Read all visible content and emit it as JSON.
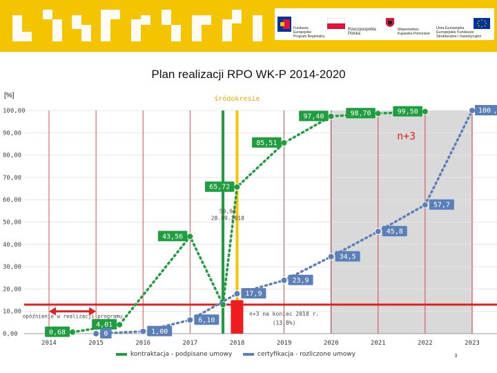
{
  "header": {
    "logos": [
      {
        "name": "Fundusze Europejskie",
        "lines": [
          "Fundusze",
          "Europejskie",
          "Program Regionalny"
        ]
      },
      {
        "name": "Rzeczpospolita Polska",
        "lines": [
          "Rzeczpospolita",
          "Polska"
        ]
      },
      {
        "name": "Województwo Kujawsko-Pomorskie",
        "lines": [
          "Województwo",
          "Kujawsko-Pomorskie"
        ]
      },
      {
        "name": "Unia Europejska",
        "lines": [
          "Unia Europejska",
          "Europejskie Fundusze",
          "Strukturalne i Inwestycyjne"
        ]
      }
    ],
    "colors": {
      "banner": "#f4c400",
      "flag_red": "#dc143c",
      "eu_blue": "#003399"
    }
  },
  "page_number": "3",
  "chart_data": {
    "type": "line",
    "title": "Plan realizacji RPO WK-P 2014-2020",
    "ylabel": "[%]",
    "xlabel": "",
    "categories": [
      "2014",
      "2015",
      "2016",
      "2017",
      "2018",
      "2019",
      "2020",
      "2021",
      "2022",
      "2023"
    ],
    "ylim": [
      0,
      100
    ],
    "y_ticks": [
      "0,00",
      "10,00",
      "20,00",
      "30,00",
      "40,00",
      "50,00",
      "60,00",
      "70,00",
      "80,00",
      "90,00",
      "100,00"
    ],
    "grid": true,
    "legend_position": "bottom",
    "series": [
      {
        "name": "kontraktacja - podpisane umowy",
        "color": "#1e9e3e",
        "points": [
          {
            "x": 2014.5,
            "y": 0.68,
            "label": "0,68"
          },
          {
            "x": 2015.5,
            "y": 4.01,
            "label": "4,01"
          },
          {
            "x": 2017.7,
            "y": 13.0,
            "label": ""
          },
          {
            "x": 2018.0,
            "y": 65.72,
            "label": "65,72"
          },
          {
            "x": 2017.0,
            "y": 43.56,
            "label": "43,56"
          },
          {
            "x": 2019.0,
            "y": 85.51,
            "label": "85,51"
          },
          {
            "x": 2020.0,
            "y": 97.4,
            "label": "97,40"
          },
          {
            "x": 2021.0,
            "y": 98.7,
            "label": "98,70"
          },
          {
            "x": 2022.0,
            "y": 99.5,
            "label": "99,50"
          }
        ]
      },
      {
        "name": "certyfikacja - rozliczone umowy",
        "color": "#5b7fb8",
        "points": [
          {
            "x": 2015.0,
            "y": 0.0,
            "label": "0"
          },
          {
            "x": 2016.0,
            "y": 1.0,
            "label": "1,00"
          },
          {
            "x": 2017.0,
            "y": 6.1,
            "label": "6,10"
          },
          {
            "x": 2018.0,
            "y": 17.9,
            "label": "17,9"
          },
          {
            "x": 2019.0,
            "y": 23.9,
            "label": "23,9"
          },
          {
            "x": 2020.0,
            "y": 34.5,
            "label": "34,5"
          },
          {
            "x": 2021.0,
            "y": 45.8,
            "label": "45,8"
          },
          {
            "x": 2022.0,
            "y": 57.7,
            "label": "57,7"
          },
          {
            "x": 2023.0,
            "y": 100.0,
            "label": "100,00"
          }
        ]
      }
    ],
    "extra_point_label": "100",
    "reference_line": {
      "y": 13,
      "color": "#e02020"
    },
    "markers": [
      {
        "x": 2017.7,
        "label": "",
        "color": "#1e9e3e"
      },
      {
        "x": 2018.0,
        "label": "śródokresie",
        "color": "#f4c400"
      }
    ],
    "shaded_region": {
      "from": 2020.0,
      "to": 2023.0,
      "label": "n+3"
    },
    "annotations": [
      {
        "text": "opóźnienie w realizacji programu",
        "x": 2014.5,
        "y": 7
      },
      {
        "text": "50,94",
        "x": 2017.8,
        "y": 54
      },
      {
        "text": "28.09.2018",
        "x": 2017.8,
        "y": 51
      },
      {
        "text": "n+3 na koniec 2018 r.",
        "x": 2019.0,
        "y": 8
      },
      {
        "text": "(13,8%)",
        "x": 2019.0,
        "y": 4
      }
    ],
    "delay_arrow": {
      "from": 2014.0,
      "to": 2015.0,
      "y": 10
    },
    "red_bar": {
      "x": 2018.0,
      "y": 15
    }
  }
}
